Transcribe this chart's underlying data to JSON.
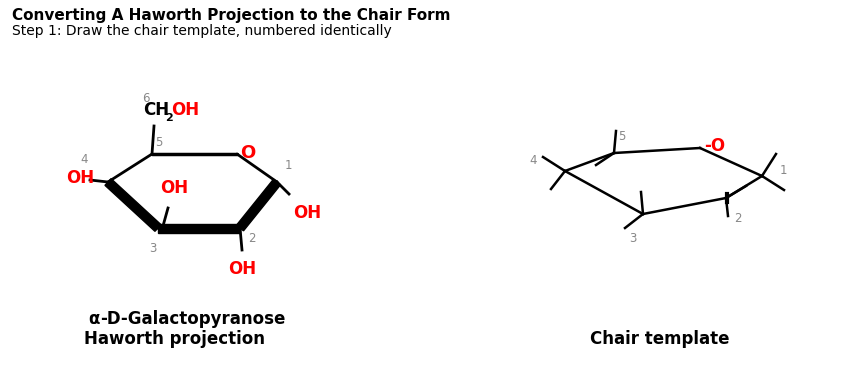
{
  "title": "Converting A Haworth Projection to the Chair Form",
  "subtitle": "Step 1: Draw the chair template, numbered identically",
  "alpha_label": "α-D-Galactopyranose",
  "haworth_label": "Haworth projection",
  "chair_label": "Chair template",
  "red": "#FF0000",
  "black": "#000000",
  "gray": "#888888",
  "bg": "#FFFFFF"
}
